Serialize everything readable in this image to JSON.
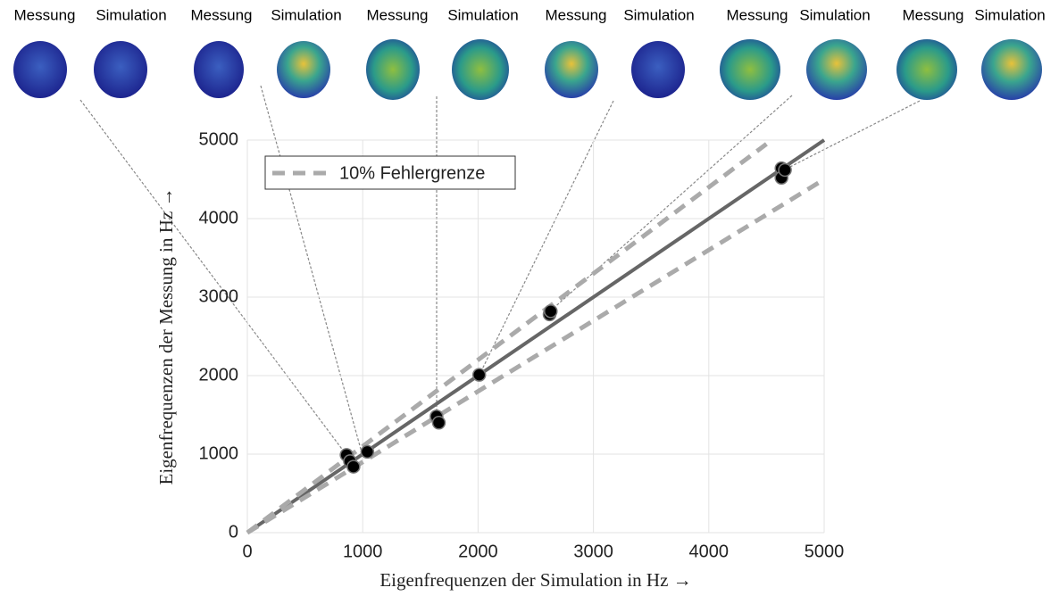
{
  "chart_data": {
    "type": "scatter",
    "panel_labels": [
      "Messung",
      "Simulation",
      "Messung",
      "Simulation",
      "Messung",
      "Simulation",
      "Messung",
      "Simulation",
      "Messung",
      "Simulation",
      "Messung",
      "Simulation"
    ],
    "xlabel": "Eigenfrequenzen der Simulation in Hz →",
    "ylabel": "Eigenfrequenzen der Messung in Hz →",
    "x": [
      860,
      890,
      920,
      1040,
      1640,
      1660,
      2010,
      2620,
      2630,
      4630,
      4630,
      4660
    ],
    "y": [
      990,
      910,
      840,
      1030,
      1480,
      1400,
      2010,
      2780,
      2820,
      4640,
      4520,
      4620
    ],
    "color": "#000000",
    "lines": [
      {
        "x": [
          0,
          5000
        ],
        "y": [
          0,
          5000
        ],
        "color": "#666666",
        "style": "solid"
      },
      {
        "name": "10% Fehlergrenze",
        "x": [
          0,
          4500
        ],
        "y": [
          0,
          4950
        ],
        "color": "#aaaaaa",
        "style": "dashed"
      },
      {
        "x": [
          0,
          5000
        ],
        "y": [
          0,
          4500
        ],
        "color": "#aaaaaa",
        "style": "dashed"
      }
    ],
    "xlim": [
      0,
      5000
    ],
    "ylim": [
      0,
      5000
    ],
    "xticks": [
      0,
      1000,
      2000,
      3000,
      4000,
      5000
    ],
    "yticks": [
      0,
      1000,
      2000,
      3000,
      4000,
      5000
    ],
    "grid": true,
    "legend": "upper left"
  }
}
